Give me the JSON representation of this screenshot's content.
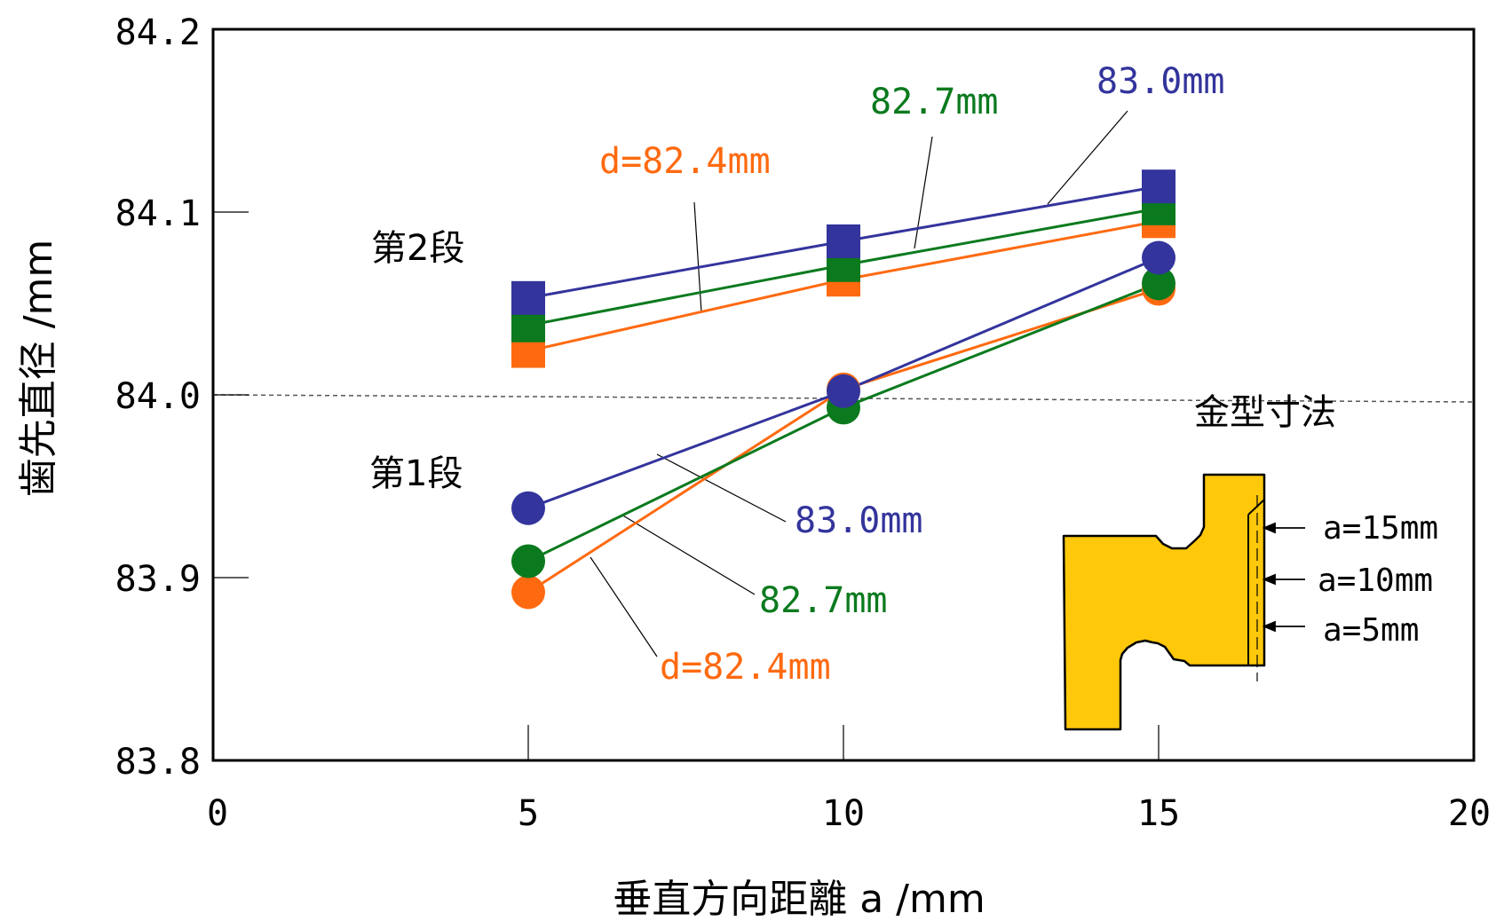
{
  "chart_data": {
    "type": "line",
    "xlabel": "垂直方向距離 a /mm",
    "ylabel": "歯先直径 /mm",
    "xlim": [
      0,
      20
    ],
    "ylim": [
      83.8,
      84.2
    ],
    "xticks": [
      "0",
      "5",
      "10",
      "15",
      "20"
    ],
    "yticks": [
      "83.8",
      "83.9",
      "84.0",
      "84.1",
      "84.2"
    ],
    "x": [
      5,
      10,
      15
    ],
    "reference_line": {
      "y": 84.0,
      "label": "金型寸法"
    },
    "groups": [
      {
        "label": "第2段",
        "marker": "square"
      },
      {
        "label": "第1段",
        "marker": "circle"
      }
    ],
    "series": [
      {
        "group": "第2段",
        "label": "d=82.4mm",
        "color": "#ff6a10",
        "marker": "square",
        "values": [
          84.024,
          84.063,
          84.095
        ]
      },
      {
        "group": "第2段",
        "label": "82.7mm",
        "color": "#0b7a1e",
        "marker": "square",
        "values": [
          84.038,
          84.071,
          84.102
        ]
      },
      {
        "group": "第2段",
        "label": "83.0mm",
        "color": "#33349c",
        "marker": "square",
        "values": [
          84.053,
          84.084,
          84.114
        ]
      },
      {
        "group": "第1段",
        "label": "d=82.4mm",
        "color": "#ff6a10",
        "marker": "circle",
        "values": [
          83.892,
          84.003,
          84.058
        ]
      },
      {
        "group": "第1段",
        "label": "82.7mm",
        "color": "#0b7a1e",
        "marker": "circle",
        "values": [
          83.909,
          83.993,
          84.061
        ]
      },
      {
        "group": "第1段",
        "label": "83.0mm",
        "color": "#33349c",
        "marker": "circle",
        "values": [
          83.938,
          84.002,
          84.075
        ]
      }
    ],
    "inset_labels": [
      "a=15mm",
      "a=10mm",
      "a=5mm"
    ],
    "colors": {
      "orange": "#ff6a10",
      "green": "#0b7a1e",
      "blue": "#33349c",
      "die": "#ffc80a"
    }
  }
}
